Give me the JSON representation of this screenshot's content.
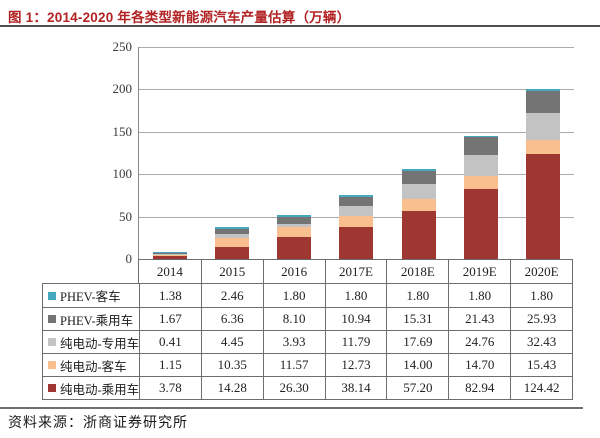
{
  "title": "图 1：2014-2020 年各类型新能源汽车产量估算（万辆）",
  "source": "资料来源：浙商证券研究所",
  "chart_data": {
    "type": "bar",
    "stacked": true,
    "title": "2014-2020 年各类型新能源汽车产量估算（万辆）",
    "categories": [
      "2014",
      "2015",
      "2016",
      "2017E",
      "2018E",
      "2019E",
      "2020E"
    ],
    "series": [
      {
        "name": "PHEV-客车",
        "color": "#45a8be",
        "values": [
          1.38,
          2.46,
          1.8,
          1.8,
          1.8,
          1.8,
          1.8
        ]
      },
      {
        "name": "PHEV-乘用车",
        "color": "#747474",
        "values": [
          1.67,
          6.36,
          8.1,
          10.94,
          15.31,
          21.43,
          25.93
        ]
      },
      {
        "name": "纯电动-专用车",
        "color": "#c3c3c3",
        "values": [
          0.41,
          4.45,
          3.93,
          11.79,
          17.69,
          24.76,
          32.43
        ]
      },
      {
        "name": "纯电动-客车",
        "color": "#f9bf8f",
        "values": [
          1.15,
          10.35,
          11.57,
          12.73,
          14.0,
          14.7,
          15.43
        ]
      },
      {
        "name": "纯电动-乘用车",
        "color": "#9e3631",
        "values": [
          3.78,
          14.28,
          26.3,
          38.14,
          57.2,
          82.94,
          124.42
        ]
      }
    ],
    "ylim": [
      0,
      250
    ],
    "yticks": [
      0,
      50,
      100,
      150,
      200,
      250
    ],
    "grid": true,
    "legend_position": "table-below",
    "value_decimals": 2
  },
  "colors": {
    "title_accent": "#b22222",
    "gridline": "#ababab",
    "axis": "#8a8a8a",
    "table_border": "#6e6e6e"
  }
}
